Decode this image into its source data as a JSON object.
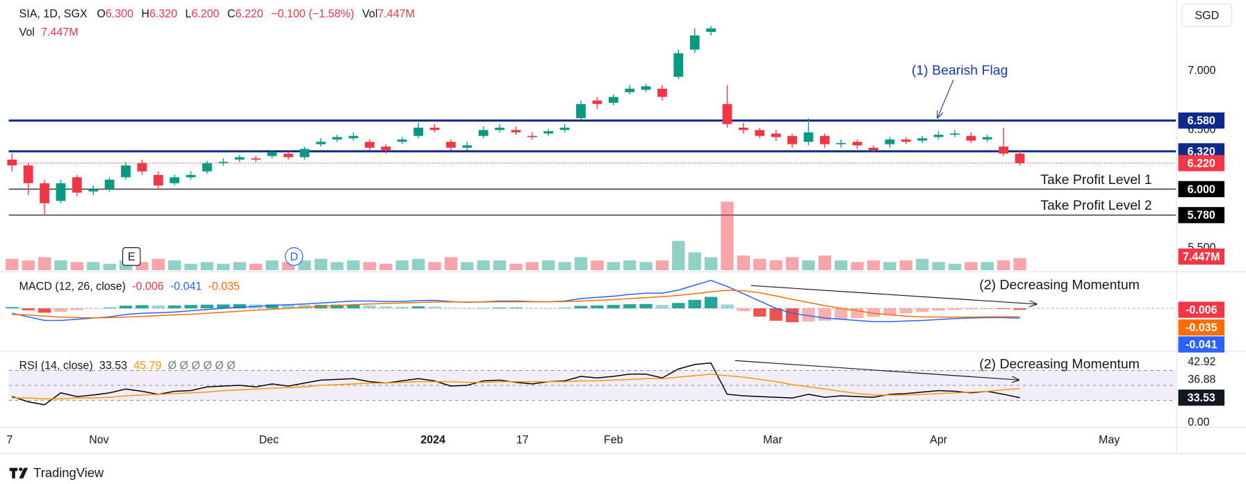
{
  "header": {
    "symbol": "SIA, 1D, SGX",
    "o_label": "O",
    "open": "6.300",
    "h_label": "H",
    "high": "6.320",
    "l_label": "L",
    "low": "6.200",
    "c_label": "C",
    "close": "6.220",
    "change": "−0.100 (−1.58%)",
    "vol_label": "Vol"
  },
  "currency": "SGD",
  "footer": {
    "brand": "TradingView"
  },
  "chart_data": [
    {
      "type": "candlestick",
      "annotation": "(1) Bearish Flag",
      "up_color": "#089981",
      "down_color": "#f23645",
      "xlim": [
        -0.2,
        71.6
      ],
      "ylim": [
        5.3,
        7.6
      ],
      "yticks": [
        {
          "value": 7,
          "label": "7.000"
        },
        {
          "value": 6.5,
          "label": "6.500"
        },
        {
          "value": 5.5,
          "label": "5.500"
        }
      ],
      "xticks": [
        {
          "value": -0.15,
          "label": "7"
        },
        {
          "value": 5.35,
          "label": "Nov"
        },
        {
          "value": 15.8,
          "label": "Dec"
        },
        {
          "value": 25.9,
          "label": "2024",
          "bold": true
        },
        {
          "value": 31.4,
          "label": "17"
        },
        {
          "value": 37,
          "label": "Feb"
        },
        {
          "value": 46.8,
          "label": "Mar"
        },
        {
          "value": 57,
          "label": "Apr"
        },
        {
          "value": 67.5,
          "label": "May"
        }
      ],
      "levels": [
        {
          "value": 6.58,
          "label": "6.580",
          "color": "#0d2a8a",
          "style": "solid"
        },
        {
          "value": 6.32,
          "label": "6.320",
          "color": "#0d2a8a",
          "style": "solid"
        },
        {
          "value": 6.22,
          "label": "6.220",
          "color": "#f23645",
          "style": "dotted"
        },
        {
          "value": 6.0,
          "label": "6.000",
          "color": "#000000",
          "style": "thin",
          "note": "Take Profit Level 1"
        },
        {
          "value": 5.78,
          "label": "5.780",
          "color": "#000000",
          "style": "thin",
          "note": "Take Profit Level 2"
        }
      ],
      "open": [
        6.25,
        6.2,
        6.05,
        5.9,
        6.1,
        5.98,
        6.0,
        6.1,
        6.22,
        6.12,
        6.05,
        6.1,
        6.15,
        6.22,
        6.25,
        6.26,
        6.28,
        6.3,
        6.27,
        6.38,
        6.42,
        6.43,
        6.4,
        6.36,
        6.4,
        6.45,
        6.52,
        6.4,
        6.35,
        6.45,
        6.5,
        6.5,
        6.45,
        6.47,
        6.5,
        6.6,
        6.75,
        6.73,
        6.82,
        6.84,
        6.85,
        6.95,
        7.18,
        7.33,
        6.72,
        6.52,
        6.5,
        6.47,
        6.45,
        6.4,
        6.45,
        6.38,
        6.4,
        6.35,
        6.38,
        6.42,
        6.41,
        6.44,
        6.46,
        6.45,
        6.42,
        6.36,
        6.3
      ],
      "high": [
        6.3,
        6.22,
        6.08,
        6.08,
        6.12,
        6.03,
        6.1,
        6.23,
        6.25,
        6.15,
        6.12,
        6.15,
        6.24,
        6.26,
        6.29,
        6.28,
        6.33,
        6.32,
        6.36,
        6.43,
        6.46,
        6.48,
        6.42,
        6.38,
        6.44,
        6.56,
        6.55,
        6.42,
        6.4,
        6.53,
        6.55,
        6.53,
        6.48,
        6.51,
        6.55,
        6.75,
        6.78,
        6.8,
        6.88,
        6.89,
        6.88,
        7.18,
        7.36,
        7.38,
        6.88,
        6.56,
        6.52,
        6.5,
        6.47,
        6.6,
        6.47,
        6.42,
        6.42,
        6.37,
        6.44,
        6.44,
        6.45,
        6.49,
        6.5,
        6.48,
        6.46,
        6.52,
        6.32
      ],
      "low": [
        6.15,
        5.95,
        5.78,
        5.88,
        5.94,
        5.95,
        5.98,
        6.08,
        6.12,
        6.0,
        6.03,
        6.08,
        6.13,
        6.2,
        6.23,
        6.23,
        6.26,
        6.25,
        6.25,
        6.36,
        6.4,
        6.41,
        6.33,
        6.3,
        6.38,
        6.43,
        6.48,
        6.33,
        6.33,
        6.43,
        6.48,
        6.46,
        6.42,
        6.45,
        6.48,
        6.58,
        6.68,
        6.71,
        6.8,
        6.82,
        6.75,
        6.93,
        7.15,
        7.3,
        6.52,
        6.47,
        6.43,
        6.41,
        6.35,
        6.37,
        6.35,
        6.35,
        6.34,
        6.31,
        6.35,
        6.38,
        6.39,
        6.42,
        6.44,
        6.39,
        6.4,
        6.28,
        6.2
      ],
      "close": [
        6.2,
        6.05,
        5.88,
        6.05,
        5.97,
        6.0,
        6.08,
        6.2,
        6.15,
        6.03,
        6.1,
        6.12,
        6.22,
        6.23,
        6.27,
        6.25,
        6.31,
        6.27,
        6.34,
        6.4,
        6.44,
        6.45,
        6.35,
        6.33,
        6.42,
        6.52,
        6.5,
        6.35,
        6.37,
        6.5,
        6.52,
        6.48,
        6.44,
        6.49,
        6.52,
        6.72,
        6.72,
        6.78,
        6.85,
        6.87,
        6.78,
        7.15,
        7.3,
        7.36,
        6.55,
        6.5,
        6.45,
        6.44,
        6.38,
        6.48,
        6.38,
        6.39,
        6.37,
        6.33,
        6.42,
        6.4,
        6.43,
        6.46,
        6.47,
        6.41,
        6.44,
        6.3,
        6.22
      ]
    },
    {
      "type": "volume",
      "title": "Vol",
      "last_label": "7.447M",
      "ylim": [
        0,
        45
      ],
      "up_color": "rgba(8,153,129,0.45)",
      "down_color": "rgba(242,54,69,0.45)",
      "events": [
        {
          "x": 7.35,
          "label": "E"
        },
        {
          "x": 17.35,
          "label": "D"
        }
      ],
      "values": [
        7,
        6,
        8,
        6,
        5,
        5,
        4,
        6,
        5,
        7,
        6,
        4,
        5,
        4,
        5,
        4,
        6,
        5,
        6,
        7,
        5,
        6,
        5,
        4,
        6,
        7,
        5,
        8,
        5,
        6,
        6,
        4,
        5,
        6,
        5,
        8,
        6,
        5,
        6,
        5,
        6,
        18,
        11,
        8,
        42,
        9,
        7,
        6,
        8,
        6,
        9,
        6,
        5,
        6,
        5,
        6,
        7,
        5,
        4,
        5,
        5,
        6,
        7.447
      ]
    },
    {
      "type": "macd",
      "title": "MACD (12, 26, close)",
      "annotation": "(2) Decreasing Momentum",
      "ylim": [
        -0.175,
        0.15
      ],
      "legend_values": [
        {
          "text": "-0.006",
          "color": "#f23645"
        },
        {
          "text": "-0.041",
          "color": "#2962ff"
        },
        {
          "text": "-0.035",
          "color": "#ff6d00"
        }
      ],
      "histogram": {
        "up_color": "#26a69a",
        "down_color": "#ef5350",
        "values": [
          0.005,
          -0.008,
          -0.018,
          -0.014,
          -0.007,
          -0.001,
          0.003,
          0.011,
          0.013,
          0.012,
          0.012,
          0.014,
          0.015,
          0.016,
          0.017,
          0.016,
          0.016,
          0.015,
          0.014,
          0.014,
          0.015,
          0.015,
          0.012,
          0.008,
          0.006,
          0.008,
          0.007,
          0.002,
          -0.001,
          0.001,
          0.003,
          0.003,
          0.001,
          0,
          0.002,
          0.01,
          0.012,
          0.014,
          0.017,
          0.018,
          0.014,
          0.022,
          0.035,
          0.047,
          0.016,
          -0.012,
          -0.034,
          -0.051,
          -0.057,
          -0.054,
          -0.051,
          -0.045,
          -0.04,
          -0.035,
          -0.028,
          -0.02,
          -0.015,
          -0.01,
          -0.006,
          -0.004,
          -0.003,
          -0.003,
          -0.006
        ]
      },
      "lines": [
        {
          "color": "#2962ff",
          "values": [
            -0.02,
            -0.035,
            -0.05,
            -0.05,
            -0.045,
            -0.04,
            -0.035,
            -0.025,
            -0.02,
            -0.018,
            -0.015,
            -0.01,
            -0.005,
            0,
            0.005,
            0.008,
            0.012,
            0.015,
            0.018,
            0.022,
            0.026,
            0.03,
            0.03,
            0.028,
            0.028,
            0.032,
            0.033,
            0.028,
            0.025,
            0.027,
            0.03,
            0.03,
            0.028,
            0.027,
            0.03,
            0.04,
            0.045,
            0.05,
            0.057,
            0.062,
            0.062,
            0.075,
            0.095,
            0.115,
            0.09,
            0.06,
            0.03,
            0,
            -0.02,
            -0.03,
            -0.04,
            -0.045,
            -0.05,
            -0.055,
            -0.055,
            -0.052,
            -0.05,
            -0.046,
            -0.042,
            -0.04,
            -0.038,
            -0.038,
            -0.041
          ]
        },
        {
          "color": "#ff6d00",
          "values": [
            -0.025,
            -0.027,
            -0.032,
            -0.036,
            -0.038,
            -0.039,
            -0.038,
            -0.036,
            -0.033,
            -0.03,
            -0.027,
            -0.024,
            -0.02,
            -0.016,
            -0.012,
            -0.008,
            -0.004,
            0,
            0.004,
            0.008,
            0.011,
            0.015,
            0.018,
            0.02,
            0.022,
            0.024,
            0.026,
            0.026,
            0.026,
            0.026,
            0.027,
            0.027,
            0.027,
            0.027,
            0.028,
            0.03,
            0.033,
            0.036,
            0.04,
            0.044,
            0.048,
            0.053,
            0.06,
            0.068,
            0.074,
            0.072,
            0.064,
            0.051,
            0.037,
            0.024,
            0.011,
            0,
            -0.01,
            -0.02,
            -0.027,
            -0.032,
            -0.035,
            -0.036,
            -0.036,
            -0.036,
            -0.035,
            -0.035,
            -0.035
          ]
        }
      ]
    },
    {
      "type": "rsi",
      "title": "RSI (14, close)",
      "annotation": "(2) Decreasing Momentum",
      "ylim": [
        -6.5,
        94
      ],
      "yticks": [
        {
          "value": 0,
          "label": "0.00"
        }
      ],
      "bands": [
        30,
        50,
        70
      ],
      "band_color": "rgba(126,87,194,0.1)",
      "legend_values": [
        {
          "text": "33.53",
          "color": "#131722"
        },
        {
          "text": "45.79",
          "color": "#ff9800"
        },
        {
          "text": "Ø Ø Ø Ø Ø Ø",
          "color": "#787b86"
        }
      ],
      "scale_labels": [
        "42.92",
        "36.88"
      ],
      "last_label": "33.53",
      "lines": [
        {
          "color": "#000000",
          "values": [
            35,
            28,
            24,
            40,
            35,
            37,
            40,
            45,
            42,
            38,
            42,
            43,
            48,
            49,
            50,
            48,
            52,
            49,
            53,
            57,
            58,
            59,
            55,
            53,
            56,
            59,
            56,
            49,
            50,
            56,
            57,
            54,
            52,
            55,
            56,
            62,
            60,
            62,
            65,
            65,
            60,
            72,
            78,
            80,
            38,
            36,
            35,
            34,
            33,
            38,
            34,
            36,
            35,
            34,
            38,
            39,
            41,
            43,
            42,
            40,
            42,
            38,
            33.53
          ]
        },
        {
          "color": "#ff9800",
          "values": [
            33,
            33,
            32,
            32,
            33,
            33,
            34,
            36,
            37,
            38,
            39,
            40,
            41,
            43,
            44,
            45,
            46,
            47,
            48,
            50,
            51,
            52,
            53,
            53,
            54,
            55,
            55,
            55,
            54,
            54,
            55,
            55,
            55,
            55,
            55,
            56,
            56,
            57,
            58,
            59,
            59,
            61,
            63,
            65,
            63,
            61,
            58,
            55,
            51,
            48,
            45,
            42,
            39,
            37,
            37,
            37,
            38,
            39,
            40,
            41,
            42,
            44,
            45.79
          ]
        }
      ]
    }
  ]
}
